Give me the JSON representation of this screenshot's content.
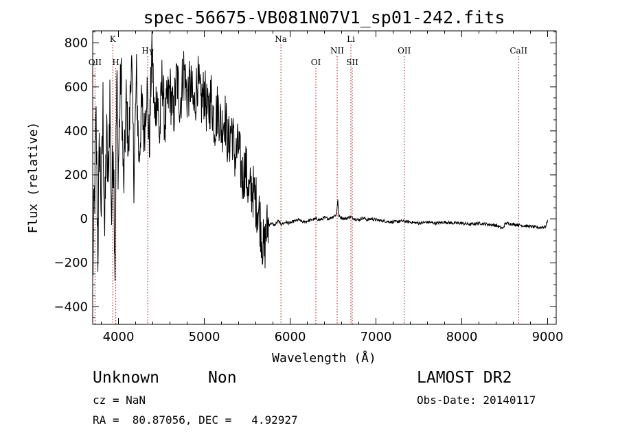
{
  "chart_data": {
    "type": "line",
    "title": "spec-56675-VB081N07V1_sp01-242.fits",
    "xlabel": "Wavelength (Å)",
    "ylabel": "Flux (relative)",
    "xlim": [
      3700,
      9100
    ],
    "ylim": [
      -480,
      855
    ],
    "x_ticks": [
      4000,
      5000,
      6000,
      7000,
      8000,
      9000
    ],
    "y_ticks": [
      -400,
      -200,
      0,
      200,
      400,
      600,
      800
    ],
    "grid": false,
    "series": [
      {
        "color": "#000000",
        "x": [
          3700,
          3720,
          3740,
          3760,
          3780,
          3800,
          3820,
          3840,
          3860,
          3880,
          3900,
          3920,
          3940,
          3960,
          3980,
          4000,
          4030,
          4060,
          4090,
          4120,
          4150,
          4180,
          4210,
          4240,
          4270,
          4300,
          4330,
          4360,
          4390,
          4420,
          4450,
          4480,
          4510,
          4540,
          4570,
          4600,
          4640,
          4680,
          4720,
          4760,
          4800,
          4840,
          4880,
          4920,
          4960,
          5000,
          5040,
          5080,
          5120,
          5160,
          5200,
          5240,
          5280,
          5320,
          5360,
          5400,
          5440,
          5480,
          5520,
          5560,
          5600,
          5640,
          5660,
          5680,
          5700,
          5720,
          5740,
          5780,
          5820,
          5860,
          5900,
          5950,
          6000,
          6050,
          6100,
          6150,
          6200,
          6250,
          6300,
          6350,
          6400,
          6450,
          6500,
          6540,
          6556,
          6564,
          6572,
          6600,
          6650,
          6700,
          6750,
          6800,
          6850,
          6900,
          6950,
          7000,
          7100,
          7200,
          7300,
          7400,
          7500,
          7600,
          7700,
          7800,
          7900,
          8000,
          8100,
          8200,
          8300,
          8400,
          8480,
          8500,
          8520,
          8600,
          8700,
          8800,
          8900,
          8980,
          9000
        ],
        "y": [
          -250,
          80,
          420,
          -140,
          360,
          60,
          500,
          -80,
          380,
          150,
          560,
          10,
          400,
          -200,
          620,
          240,
          700,
          120,
          540,
          300,
          760,
          200,
          640,
          260,
          520,
          380,
          610,
          330,
          800,
          450,
          580,
          360,
          660,
          420,
          530,
          590,
          460,
          650,
          520,
          690,
          560,
          610,
          490,
          640,
          520,
          580,
          470,
          560,
          430,
          510,
          410,
          470,
          330,
          420,
          270,
          330,
          180,
          240,
          110,
          140,
          80,
          30,
          -40,
          -110,
          -150,
          -60,
          -30,
          -20,
          -30,
          -10,
          -25,
          -15,
          -20,
          -10,
          -5,
          -15,
          -10,
          -5,
          0,
          -5,
          5,
          0,
          10,
          20,
          90,
          20,
          10,
          5,
          0,
          10,
          0,
          -5,
          5,
          -5,
          0,
          -5,
          -10,
          -15,
          -10,
          -15,
          -20,
          -15,
          -20,
          -15,
          -20,
          -20,
          -25,
          -20,
          -25,
          -30,
          -45,
          -25,
          -20,
          -25,
          -30,
          -35,
          -40,
          -35,
          -5
        ]
      }
    ],
    "annotations": [
      {
        "label": "OII",
        "x": 3727,
        "row": "low"
      },
      {
        "label": "K",
        "x": 3934,
        "row": "top"
      },
      {
        "label": "H",
        "x": 3969,
        "row": "low"
      },
      {
        "label": "Hγ",
        "x": 4341,
        "row": "mid"
      },
      {
        "label": "Na",
        "x": 5893,
        "row": "top"
      },
      {
        "label": "OI",
        "x": 6300,
        "row": "low"
      },
      {
        "label": "NII",
        "x": 6548,
        "row": "mid"
      },
      {
        "label": "Li",
        "x": 6708,
        "row": "top"
      },
      {
        "label": "SII",
        "x": 6724,
        "row": "low"
      },
      {
        "label": "OII",
        "x": 7330,
        "row": "mid"
      },
      {
        "label": "CaII",
        "x": 8662,
        "row": "mid"
      }
    ]
  },
  "info": {
    "object_class": "Unknown",
    "subclass": "Non",
    "cz": "cz = NaN",
    "coords": "RA =  80.87056, DEC =   4.92927",
    "survey": "LAMOST DR2",
    "obs_date": "Obs-Date: 20140117"
  }
}
